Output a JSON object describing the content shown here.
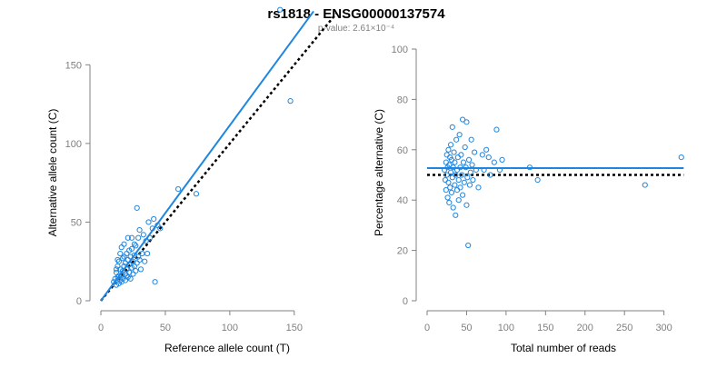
{
  "title": "rs1818 - ENSG00000137574",
  "subtitle": "p-value: 2.61×10⁻⁴",
  "colors": {
    "point": "#1f86e0",
    "fit": "#1f86e0",
    "reference": "#000000",
    "axis": "#808080",
    "text": "#000000",
    "subtitle": "#808080"
  },
  "chart_data": [
    {
      "type": "scatter",
      "xlabel": "Reference allele count (T)",
      "ylabel": "Alternative allele count (C)",
      "xlim": [
        0,
        160
      ],
      "ylim": [
        0,
        160
      ],
      "xticks": [
        0,
        50,
        100,
        150
      ],
      "yticks": [
        0,
        50,
        100,
        150
      ],
      "fit_line": {
        "x": [
          0,
          165
        ],
        "y": [
          0,
          184
        ]
      },
      "reference_line": {
        "x": [
          0,
          183
        ],
        "y": [
          0,
          183
        ]
      },
      "points": [
        [
          10,
          12
        ],
        [
          11,
          14
        ],
        [
          12,
          10
        ],
        [
          12,
          18
        ],
        [
          13,
          15
        ],
        [
          13,
          22
        ],
        [
          14,
          11
        ],
        [
          14,
          25
        ],
        [
          15,
          13
        ],
        [
          15,
          20
        ],
        [
          15,
          30
        ],
        [
          16,
          16
        ],
        [
          16,
          12
        ],
        [
          16,
          34
        ],
        [
          17,
          19
        ],
        [
          17,
          27
        ],
        [
          17,
          14
        ],
        [
          18,
          22
        ],
        [
          18,
          36
        ],
        [
          19,
          17
        ],
        [
          19,
          24
        ],
        [
          19,
          13
        ],
        [
          20,
          20
        ],
        [
          20,
          30
        ],
        [
          21,
          15
        ],
        [
          21,
          26
        ],
        [
          21,
          40
        ],
        [
          22,
          18
        ],
        [
          22,
          23
        ],
        [
          23,
          28
        ],
        [
          23,
          14
        ],
        [
          24,
          21
        ],
        [
          24,
          33
        ],
        [
          24,
          40
        ],
        [
          25,
          25
        ],
        [
          25,
          17
        ],
        [
          26,
          29
        ],
        [
          26,
          22
        ],
        [
          27,
          35
        ],
        [
          27,
          19
        ],
        [
          28,
          59
        ],
        [
          28,
          24
        ],
        [
          29,
          28
        ],
        [
          29,
          40
        ],
        [
          30,
          26
        ],
        [
          30,
          45
        ],
        [
          31,
          20
        ],
        [
          32,
          30
        ],
        [
          33,
          42
        ],
        [
          34,
          25
        ],
        [
          35,
          38
        ],
        [
          36,
          30
        ],
        [
          37,
          50
        ],
        [
          38,
          40
        ],
        [
          40,
          46
        ],
        [
          41,
          52
        ],
        [
          42,
          12
        ],
        [
          44,
          48
        ],
        [
          46,
          46
        ],
        [
          60,
          71
        ],
        [
          74,
          68
        ],
        [
          139,
          185
        ],
        [
          147,
          127
        ],
        [
          12,
          20
        ],
        [
          13,
          26
        ],
        [
          14,
          16
        ],
        [
          18,
          28
        ],
        [
          20,
          16
        ],
        [
          22,
          32
        ],
        [
          26,
          36
        ]
      ]
    },
    {
      "type": "scatter",
      "xlabel": "Total number of reads",
      "ylabel": "Percentage alternative (C)",
      "xlim": [
        0,
        320
      ],
      "ylim": [
        0,
        100
      ],
      "xticks": [
        0,
        50,
        100,
        150,
        200,
        250,
        300
      ],
      "yticks": [
        0,
        20,
        40,
        60,
        80,
        100
      ],
      "fit_line": {
        "x": [
          0,
          325
        ],
        "y": [
          52.7,
          52.7
        ]
      },
      "reference_line": {
        "x": [
          0,
          325
        ],
        "y": [
          50,
          50
        ]
      },
      "points": [
        [
          22,
          52
        ],
        [
          23,
          48
        ],
        [
          24,
          55
        ],
        [
          24,
          44
        ],
        [
          25,
          58
        ],
        [
          25,
          50
        ],
        [
          26,
          53
        ],
        [
          26,
          41
        ],
        [
          27,
          60
        ],
        [
          27,
          47
        ],
        [
          28,
          54
        ],
        [
          28,
          39
        ],
        [
          29,
          57
        ],
        [
          29,
          45
        ],
        [
          30,
          51
        ],
        [
          30,
          62
        ],
        [
          31,
          43
        ],
        [
          31,
          56
        ],
        [
          32,
          69
        ],
        [
          32,
          49
        ],
        [
          33,
          37
        ],
        [
          33,
          53
        ],
        [
          34,
          59
        ],
        [
          35,
          46
        ],
        [
          35,
          55
        ],
        [
          36,
          34
        ],
        [
          36,
          50
        ],
        [
          37,
          64
        ],
        [
          38,
          44
        ],
        [
          38,
          52
        ],
        [
          39,
          57
        ],
        [
          40,
          40
        ],
        [
          40,
          48
        ],
        [
          41,
          66
        ],
        [
          42,
          53
        ],
        [
          42,
          45
        ],
        [
          43,
          58
        ],
        [
          44,
          50
        ],
        [
          45,
          72
        ],
        [
          45,
          42
        ],
        [
          46,
          55
        ],
        [
          47,
          47
        ],
        [
          48,
          61
        ],
        [
          49,
          53
        ],
        [
          50,
          71
        ],
        [
          50,
          38
        ],
        [
          51,
          49
        ],
        [
          52,
          22
        ],
        [
          53,
          56
        ],
        [
          54,
          46
        ],
        [
          55,
          51
        ],
        [
          56,
          64
        ],
        [
          57,
          54
        ],
        [
          58,
          48
        ],
        [
          60,
          59
        ],
        [
          62,
          52
        ],
        [
          65,
          45
        ],
        [
          70,
          58
        ],
        [
          72,
          52
        ],
        [
          75,
          60
        ],
        [
          78,
          57
        ],
        [
          80,
          50
        ],
        [
          85,
          55
        ],
        [
          88,
          68
        ],
        [
          92,
          52
        ],
        [
          95,
          56
        ],
        [
          130,
          53
        ],
        [
          140,
          48
        ],
        [
          276,
          46
        ],
        [
          322,
          57
        ]
      ]
    }
  ]
}
